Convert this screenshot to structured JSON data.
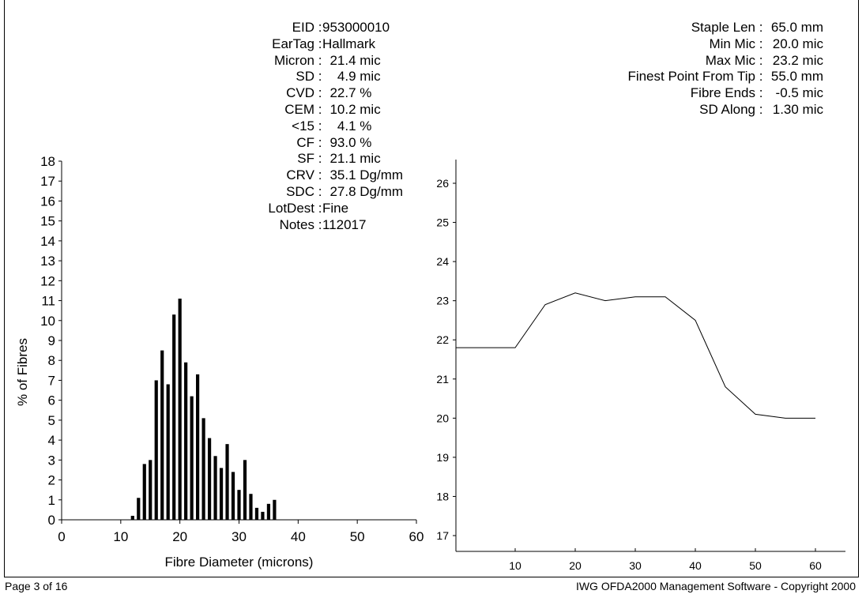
{
  "info_left": [
    {
      "label": "EID",
      "value": "953000010"
    },
    {
      "label": "EarTag",
      "value": "Hallmark"
    },
    {
      "label": "Micron",
      "value": "  21.4 mic"
    },
    {
      "label": "SD",
      "value": "    4.9 mic"
    },
    {
      "label": "CVD",
      "value": "  22.7 %"
    },
    {
      "label": "CEM",
      "value": "  10.2 mic"
    },
    {
      "label": "<15",
      "value": "    4.1 %"
    },
    {
      "label": "CF",
      "value": "  93.0 %"
    },
    {
      "label": "SF",
      "value": "  21.1 mic"
    },
    {
      "label": "CRV",
      "value": "  35.1 Dg/mm"
    },
    {
      "label": "SDC",
      "value": "  27.8 Dg/mm"
    },
    {
      "label": "LotDest",
      "value": "Fine"
    },
    {
      "label": "Notes",
      "value": "112017"
    }
  ],
  "info_right": [
    {
      "label": "Staple Len",
      "value": "65.0 mm"
    },
    {
      "label": "Min Mic",
      "value": "20.0 mic"
    },
    {
      "label": "Max Mic",
      "value": "23.2 mic"
    },
    {
      "label": "Finest Point From Tip",
      "value": "55.0 mm"
    },
    {
      "label": "Fibre Ends",
      "value": "-0.5 mic"
    },
    {
      "label": "SD Along",
      "value": "1.30 mic"
    }
  ],
  "footer": {
    "page": "Page 3 of 16",
    "copyright": "IWG OFDA2000 Management Software - Copyright 2000"
  },
  "chart_data": [
    {
      "type": "bar",
      "xlabel": "Fibre Diameter (microns)",
      "ylabel": "% of Fibres",
      "xlim": [
        0,
        60
      ],
      "ylim": [
        0,
        18
      ],
      "xticks": [
        0,
        10,
        20,
        30,
        40,
        50,
        60
      ],
      "yticks": [
        0,
        1,
        2,
        3,
        4,
        5,
        6,
        7,
        8,
        9,
        10,
        11,
        12,
        13,
        14,
        15,
        16,
        17,
        18
      ],
      "x": [
        12,
        13,
        14,
        15,
        16,
        17,
        18,
        19,
        20,
        21,
        22,
        23,
        24,
        25,
        26,
        27,
        28,
        29,
        30,
        31,
        32,
        33,
        34,
        35,
        36
      ],
      "values": [
        0.2,
        1.1,
        2.8,
        3.0,
        7.0,
        8.5,
        6.8,
        10.3,
        11.1,
        7.9,
        6.2,
        7.3,
        5.1,
        4.1,
        3.2,
        2.6,
        3.8,
        2.4,
        1.5,
        3.0,
        1.3,
        0.6,
        0.4,
        0.8,
        1.0
      ],
      "color": "#000000"
    },
    {
      "type": "line",
      "xlabel": "",
      "ylabel": "",
      "xlim": [
        0,
        65
      ],
      "ylim": [
        16.5,
        26.5
      ],
      "xticks": [
        10,
        20,
        30,
        40,
        50,
        60
      ],
      "yticks": [
        17,
        18,
        19,
        20,
        21,
        22,
        23,
        24,
        25,
        26
      ],
      "x": [
        0,
        3,
        10,
        15,
        20,
        25,
        30,
        35,
        40,
        45,
        50,
        55,
        60
      ],
      "values": [
        21.8,
        21.8,
        21.8,
        22.9,
        23.2,
        23.0,
        23.1,
        23.1,
        22.5,
        20.8,
        20.1,
        20.0,
        20.0
      ],
      "color": "#000000"
    }
  ]
}
